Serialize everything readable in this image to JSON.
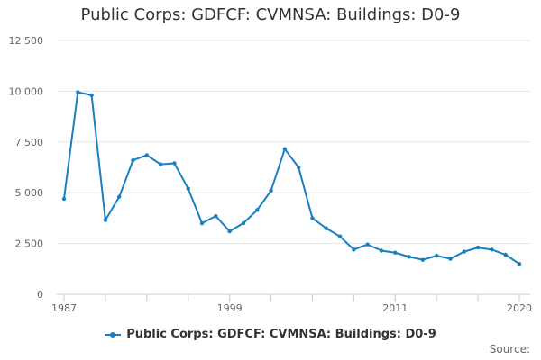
{
  "chart_data": {
    "type": "line",
    "title": "Public Corps: GDFCF: CVMNSA: Buildings: D0-9",
    "xlabel": "",
    "ylabel": "",
    "x": [
      1987,
      1988,
      1989,
      1990,
      1991,
      1992,
      1993,
      1994,
      1995,
      1996,
      1997,
      1998,
      1999,
      2000,
      2001,
      2002,
      2003,
      2004,
      2005,
      2006,
      2007,
      2008,
      2009,
      2010,
      2011,
      2012,
      2013,
      2014,
      2015,
      2016,
      2017,
      2018,
      2019,
      2020
    ],
    "series": [
      {
        "name": "Public Corps: GDFCF: CVMNSA: Buildings: D0-9",
        "values": [
          4700,
          9950,
          9800,
          3650,
          4800,
          6600,
          6850,
          6400,
          6450,
          5200,
          3500,
          3850,
          3100,
          3500,
          4150,
          5100,
          7150,
          6250,
          3750,
          3250,
          2850,
          2200,
          2450,
          2150,
          2050,
          1850,
          1700,
          1900,
          1750,
          2100,
          2300,
          2200,
          1950,
          1500
        ]
      }
    ],
    "xlim": [
      1987,
      2020
    ],
    "ylim": [
      0,
      12500
    ],
    "yticks": [
      0,
      2500,
      5000,
      7500,
      10000,
      12500
    ],
    "ytick_labels": [
      "0",
      "2 500",
      "5 000",
      "7 500",
      "10 000",
      "12 500"
    ],
    "xtick_labels": [
      1987,
      1999,
      2011,
      2020
    ],
    "grid": true,
    "legend_position": "bottom-center",
    "color": "#1a7fc1"
  },
  "legend": {
    "label": "Public Corps: GDFCF: CVMNSA: Buildings: D0-9"
  },
  "source_label": "Source:"
}
